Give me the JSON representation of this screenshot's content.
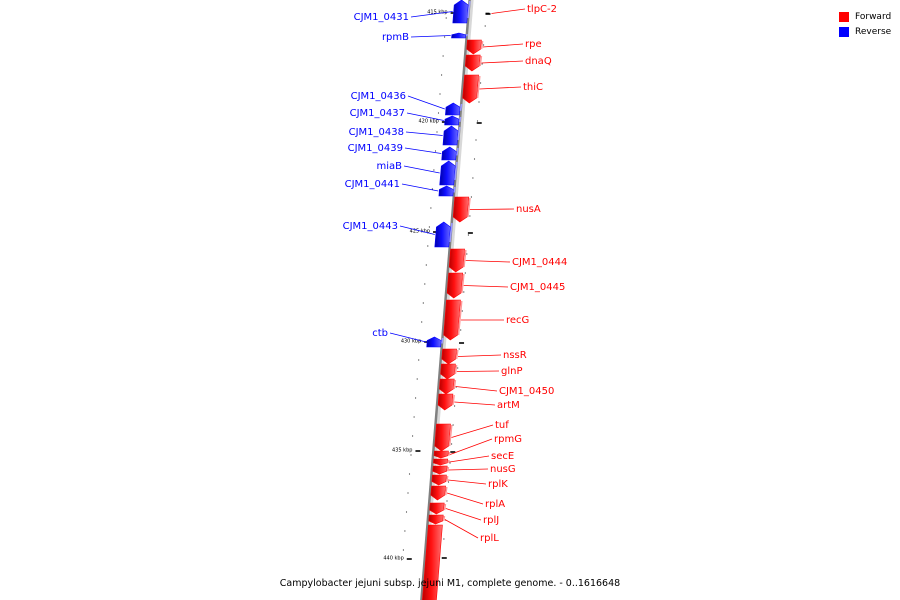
{
  "caption": "Campylobacter jejuni subsp. jejuni M1, complete genome. - 0..1616648",
  "legend": [
    {
      "label": "Forward",
      "color": "#ff0000"
    },
    {
      "label": "Reverse",
      "color": "#0000ff"
    }
  ],
  "colors": {
    "forward": "#ff0000",
    "reverse": "#0000ff",
    "backbone": "#808080"
  },
  "scale_ticks": [
    {
      "kbp": 415,
      "label": "415 kbp"
    },
    {
      "kbp": 420,
      "label": "420 kbp"
    },
    {
      "kbp": 425,
      "label": "425 kbp"
    },
    {
      "kbp": 430,
      "label": "430 kbp"
    },
    {
      "kbp": 435,
      "label": "435 kbp"
    },
    {
      "kbp": 440,
      "label": "440 kbp"
    }
  ],
  "genes": [
    {
      "name": "CJM1_0431",
      "strand": "reverse"
    },
    {
      "name": "tlpC-2",
      "strand": "forward"
    },
    {
      "name": "rpmB",
      "strand": "reverse"
    },
    {
      "name": "rpe",
      "strand": "forward"
    },
    {
      "name": "dnaQ",
      "strand": "forward"
    },
    {
      "name": "thiC",
      "strand": "forward"
    },
    {
      "name": "CJM1_0436",
      "strand": "reverse"
    },
    {
      "name": "CJM1_0437",
      "strand": "reverse"
    },
    {
      "name": "CJM1_0438",
      "strand": "reverse"
    },
    {
      "name": "CJM1_0439",
      "strand": "reverse"
    },
    {
      "name": "miaB",
      "strand": "reverse"
    },
    {
      "name": "CJM1_0441",
      "strand": "reverse"
    },
    {
      "name": "nusA",
      "strand": "forward"
    },
    {
      "name": "CJM1_0443",
      "strand": "reverse"
    },
    {
      "name": "CJM1_0444",
      "strand": "forward"
    },
    {
      "name": "CJM1_0445",
      "strand": "forward"
    },
    {
      "name": "recG",
      "strand": "forward"
    },
    {
      "name": "ctb",
      "strand": "reverse"
    },
    {
      "name": "nssR",
      "strand": "forward"
    },
    {
      "name": "glnP",
      "strand": "forward"
    },
    {
      "name": "CJM1_0450",
      "strand": "forward"
    },
    {
      "name": "artM",
      "strand": "forward"
    },
    {
      "name": "tuf",
      "strand": "forward"
    },
    {
      "name": "rpmG",
      "strand": "forward"
    },
    {
      "name": "secE",
      "strand": "forward"
    },
    {
      "name": "nusG",
      "strand": "forward"
    },
    {
      "name": "rplK",
      "strand": "forward"
    },
    {
      "name": "rplA",
      "strand": "forward"
    },
    {
      "name": "rplJ",
      "strand": "forward"
    },
    {
      "name": "rplL",
      "strand": "forward"
    }
  ]
}
